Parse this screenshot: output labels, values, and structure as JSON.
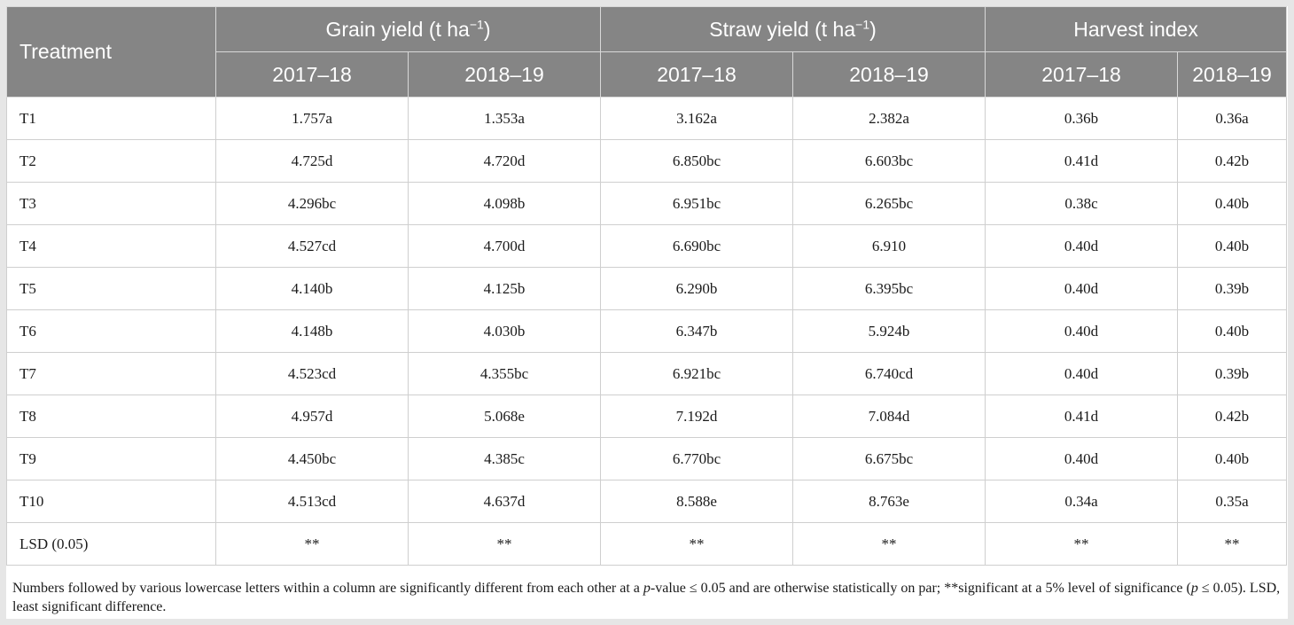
{
  "table": {
    "treatment_header": "Treatment",
    "groups": [
      {
        "label": "Grain yield (t ha",
        "sup": "−1",
        "close": ")"
      },
      {
        "label": "Straw yield (t ha",
        "sup": "−1",
        "close": ")"
      },
      {
        "label": "Harvest index",
        "sup": "",
        "close": ""
      }
    ],
    "years": [
      "2017–18",
      "2018–19",
      "2017–18",
      "2018–19",
      "2017–18",
      "2018–19"
    ],
    "rows": [
      {
        "treatment": "T1",
        "values": [
          "1.757a",
          "1.353a",
          "3.162a",
          "2.382a",
          "0.36b",
          "0.36a"
        ]
      },
      {
        "treatment": "T2",
        "values": [
          "4.725d",
          "4.720d",
          "6.850bc",
          "6.603bc",
          "0.41d",
          "0.42b"
        ]
      },
      {
        "treatment": "T3",
        "values": [
          "4.296bc",
          "4.098b",
          "6.951bc",
          "6.265bc",
          "0.38c",
          "0.40b"
        ]
      },
      {
        "treatment": "T4",
        "values": [
          "4.527cd",
          "4.700d",
          "6.690bc",
          "6.910",
          "0.40d",
          "0.40b"
        ]
      },
      {
        "treatment": "T5",
        "values": [
          "4.140b",
          "4.125b",
          "6.290b",
          "6.395bc",
          "0.40d",
          "0.39b"
        ]
      },
      {
        "treatment": "T6",
        "values": [
          "4.148b",
          "4.030b",
          "6.347b",
          "5.924b",
          "0.40d",
          "0.40b"
        ]
      },
      {
        "treatment": "T7",
        "values": [
          "4.523cd",
          "4.355bc",
          "6.921bc",
          "6.740cd",
          "0.40d",
          "0.39b"
        ]
      },
      {
        "treatment": "T8",
        "values": [
          "4.957d",
          "5.068e",
          "7.192d",
          "7.084d",
          "0.41d",
          "0.42b"
        ]
      },
      {
        "treatment": "T9",
        "values": [
          "4.450bc",
          "4.385c",
          "6.770bc",
          "6.675bc",
          "0.40d",
          "0.40b"
        ]
      },
      {
        "treatment": "T10",
        "values": [
          "4.513cd",
          "4.637d",
          "8.588e",
          "8.763e",
          "0.34a",
          "0.35a"
        ]
      },
      {
        "treatment": "LSD (0.05)",
        "values": [
          "**",
          "**",
          "**",
          "**",
          "**",
          "**"
        ]
      }
    ]
  },
  "footnote": {
    "part1": "Numbers followed by various lowercase letters within a column are significantly different from each other at a ",
    "p1": "p",
    "part2": "-value ≤ 0.05 and are otherwise statistically on par; **significant at a 5% level of significance (",
    "p2": "p",
    "part3": " ≤ 0.05). LSD, least significant difference."
  }
}
